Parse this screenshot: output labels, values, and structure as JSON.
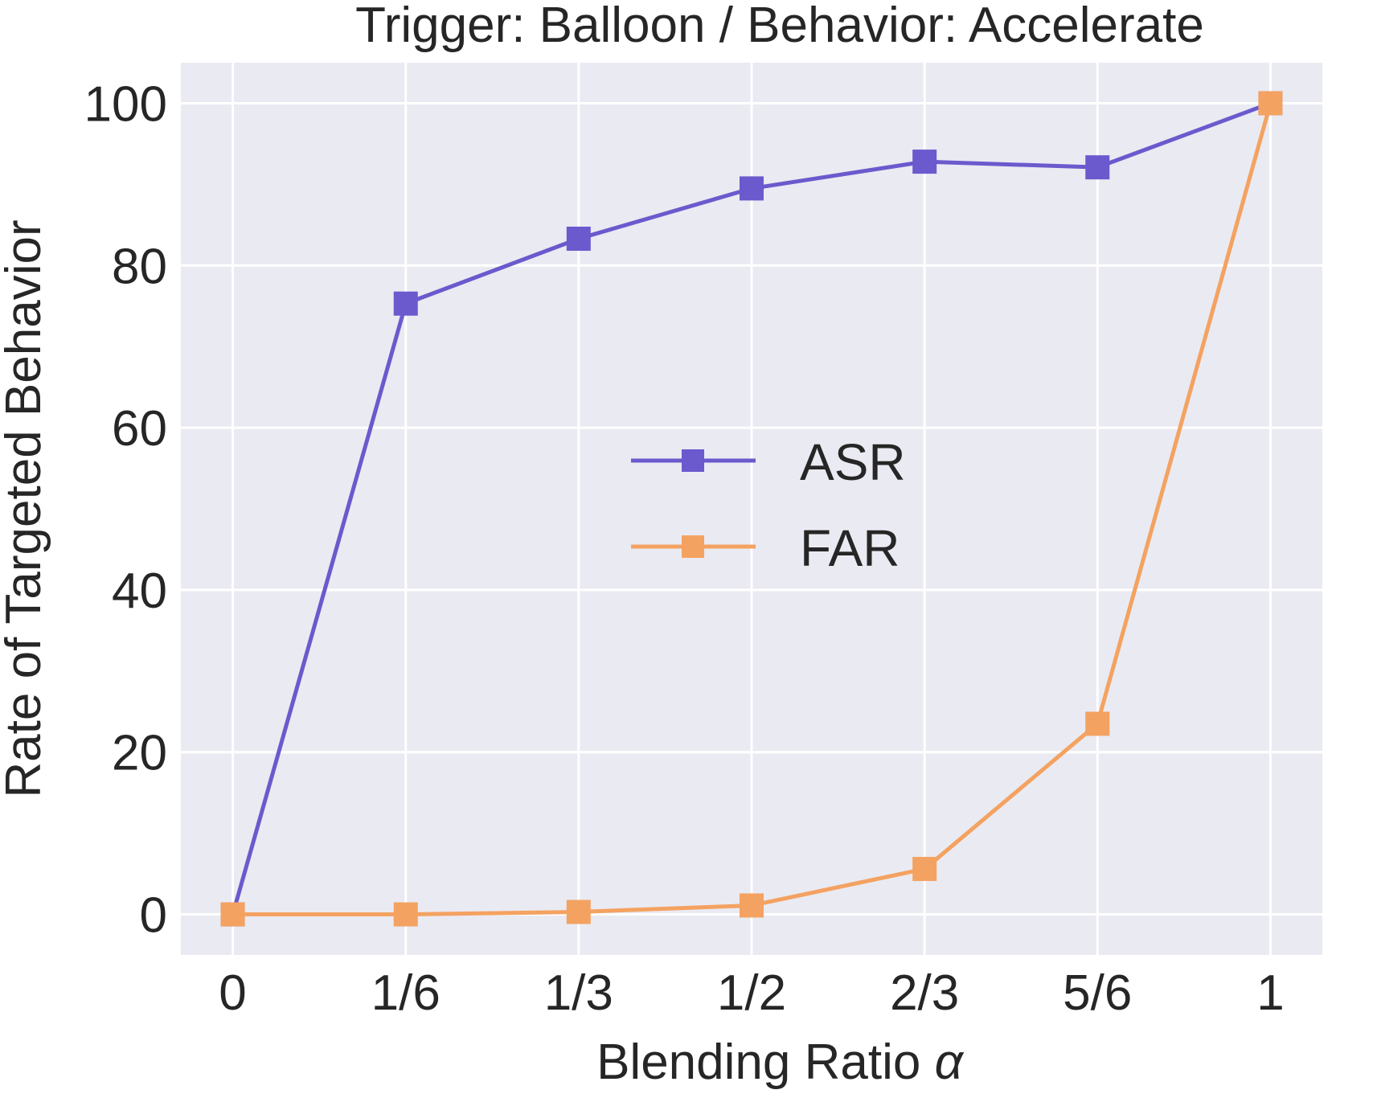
{
  "chart_data": {
    "type": "line",
    "title": "Trigger: Balloon / Behavior: Accelerate",
    "xlabel": "Blending Ratio",
    "xlabel_symbol": "α",
    "ylabel": "Rate of Targeted Behavior",
    "x_tick_labels": [
      "0",
      "1/6",
      "1/3",
      "1/2",
      "2/3",
      "5/6",
      "1"
    ],
    "x": [
      0,
      0.1667,
      0.3333,
      0.5,
      0.6667,
      0.8333,
      1
    ],
    "xlim": [
      -0.05,
      1.05
    ],
    "y_tick_labels": [
      "0",
      "20",
      "40",
      "60",
      "80",
      "100"
    ],
    "y_ticks": [
      0,
      20,
      40,
      60,
      80,
      100
    ],
    "ylim": [
      -5,
      105
    ],
    "grid": true,
    "background_color": "#eaeaf2",
    "legend_position": "center",
    "series": [
      {
        "name": "ASR",
        "color": "#6a5acd",
        "marker": "square",
        "values": [
          0,
          75.3,
          83.3,
          89.5,
          92.8,
          92.1,
          100
        ]
      },
      {
        "name": "FAR",
        "color": "#f4a261",
        "marker": "square",
        "values": [
          0,
          0,
          0.3,
          1.1,
          5.6,
          23.5,
          100
        ]
      }
    ]
  }
}
